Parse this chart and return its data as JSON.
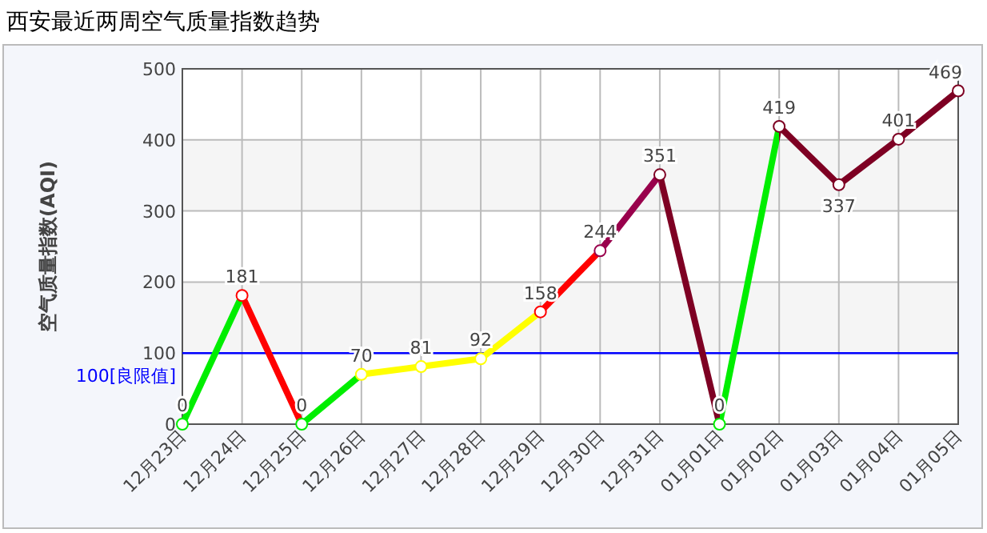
{
  "chart_data": {
    "type": "line",
    "title": "西安最近两周空气质量指数趋势",
    "ylabel": "空气质量指数(AQI)",
    "categories": [
      "12月23日",
      "12月24日",
      "12月25日",
      "12月26日",
      "12月27日",
      "12月28日",
      "12月29日",
      "12月30日",
      "12月31日",
      "01月01日",
      "01月02日",
      "01月03日",
      "01月04日",
      "01月05日"
    ],
    "series": [
      {
        "values": [
          0,
          181,
          0,
          70,
          81,
          92,
          158,
          244,
          351,
          0,
          419,
          337,
          401,
          469
        ],
        "colors": [
          "#00ee00",
          "#ff0000",
          "#00ee00",
          "#ffff00",
          "#ffff00",
          "#ffff00",
          "#ff0000",
          "#99004c",
          "#7e0023",
          "#00ee00",
          "#7e0023",
          "#7e0023",
          "#7e0023",
          "#7e0023"
        ]
      }
    ],
    "ylim": [
      0,
      500
    ],
    "yticks": [
      0,
      100,
      200,
      300,
      400,
      500
    ],
    "grid": true,
    "marker": "circle",
    "data_labels": true,
    "ref_lines": [
      {
        "axis": "y",
        "value": 100,
        "label": "100[良限值]",
        "color": "#0000ff"
      }
    ]
  }
}
